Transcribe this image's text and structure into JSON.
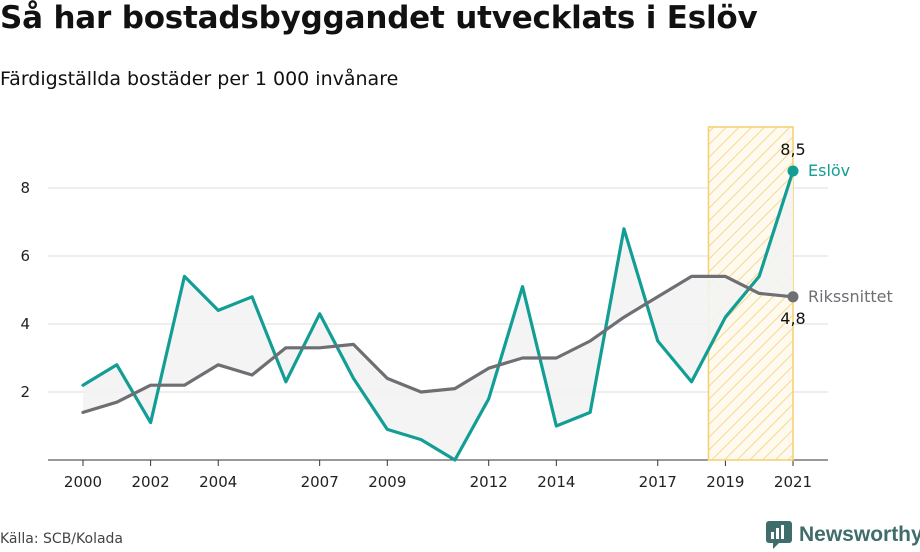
{
  "header": {
    "title": "Så har bostadsbyggandet utvecklats i Eslöv",
    "subtitle": "Färdigställda bostäder per 1 000 invånare"
  },
  "footer": {
    "source": "Källa: SCB/Kolada",
    "brand": "Newsworthy"
  },
  "colors": {
    "eslov": "#139e95",
    "riket": "#6f6e73",
    "highlight": "#f6cf6d",
    "fill": "#f3f3f3"
  },
  "chart_data": {
    "type": "line",
    "title": "Så har bostadsbyggandet utvecklats i Eslöv",
    "subtitle": "Färdigställda bostäder per 1 000 invånare",
    "xlabel": "",
    "ylabel": "",
    "x": [
      2000,
      2001,
      2002,
      2003,
      2004,
      2005,
      2006,
      2007,
      2008,
      2009,
      2010,
      2011,
      2012,
      2013,
      2014,
      2015,
      2016,
      2017,
      2018,
      2019,
      2020,
      2021
    ],
    "x_tick_labels": [
      "2000",
      "2002",
      "2004",
      "2007",
      "2009",
      "2012",
      "2014",
      "2017",
      "2019",
      "2021"
    ],
    "y_ticks": [
      2,
      4,
      6,
      8
    ],
    "ylim": [
      0,
      9.5
    ],
    "grid": true,
    "highlight_range": [
      2018.5,
      2021
    ],
    "series": [
      {
        "name": "Eslöv",
        "values": [
          2.2,
          2.8,
          1.1,
          5.4,
          4.4,
          4.8,
          2.3,
          4.3,
          2.4,
          0.9,
          0.6,
          0.0,
          1.8,
          5.1,
          1.0,
          1.4,
          6.8,
          3.5,
          2.3,
          4.2,
          5.4,
          8.5
        ],
        "end_label": "8,5"
      },
      {
        "name": "Rikssnittet",
        "values": [
          1.4,
          1.7,
          2.2,
          2.2,
          2.8,
          2.5,
          3.3,
          3.3,
          3.4,
          2.4,
          2.0,
          2.1,
          2.7,
          3.0,
          3.0,
          3.5,
          4.2,
          4.8,
          5.4,
          5.4,
          4.9,
          4.8
        ],
        "end_label": "4,8"
      }
    ]
  }
}
